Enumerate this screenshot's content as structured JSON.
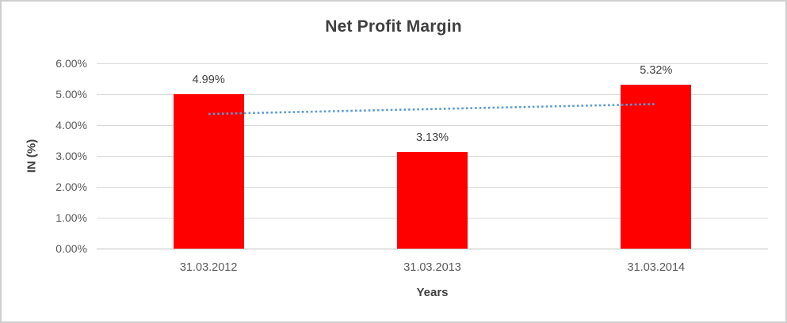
{
  "chart_data": {
    "type": "bar",
    "title": "Net Profit Margin",
    "categories": [
      "31.03.2012",
      "31.03.2013",
      "31.03.2014"
    ],
    "values": [
      4.99,
      3.13,
      5.32
    ],
    "data_labels": [
      "4.99%",
      "3.13%",
      "5.32%"
    ],
    "xlabel": "Years",
    "ylabel": "IN (%)",
    "ylim": [
      0,
      6
    ],
    "ytick_labels": [
      "0.00%",
      "1.00%",
      "2.00%",
      "3.00%",
      "4.00%",
      "5.00%",
      "6.00%"
    ],
    "grid": true,
    "legend": "none",
    "trendline": {
      "type": "linear",
      "style": "dotted",
      "start_value": 4.36,
      "end_value": 4.68
    },
    "colors": {
      "bar": "#FF0000",
      "trendline": "#5B9BD5",
      "grid": "#D9D9D9",
      "axis_line": "#C0C0C0",
      "title_text": "#3F3F3F",
      "label_text": "#404040",
      "tick_text": "#595959",
      "frame_border": "#CFCFCF",
      "background": "#FFFFFF"
    }
  }
}
